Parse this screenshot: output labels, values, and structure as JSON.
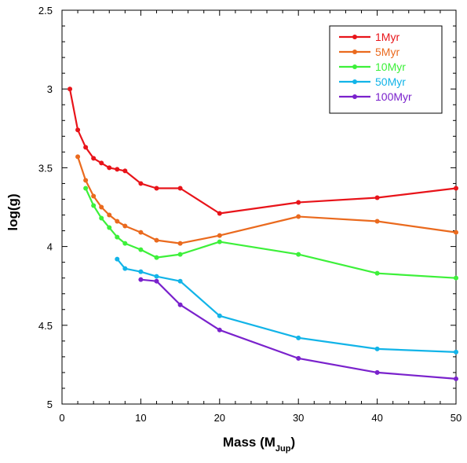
{
  "chart_data": {
    "type": "line",
    "title": "",
    "xlabel": "Mass (M",
    "xlabel_sub": "Jup",
    "xlabel_close": ")",
    "ylabel": "log(g)",
    "xlim": [
      0,
      50
    ],
    "ylim": [
      2.5,
      5
    ],
    "y_inverted": true,
    "x_ticks": [
      0,
      10,
      20,
      30,
      40,
      50
    ],
    "y_ticks": [
      2.5,
      3,
      3.5,
      4,
      4.5,
      5
    ],
    "x_tick_labels": [
      "0",
      "10",
      "20",
      "30",
      "40",
      "50"
    ],
    "y_tick_labels": [
      "2.5",
      "3",
      "3.5",
      "4",
      "4.5",
      "5"
    ],
    "grid": false,
    "legend_position": "top-right",
    "series": [
      {
        "name": "1Myr",
        "color": "#e8141a",
        "x": [
          1,
          2,
          3,
          4,
          5,
          6,
          7,
          8,
          10,
          12,
          15,
          20,
          30,
          40,
          50
        ],
        "y": [
          3.0,
          3.26,
          3.37,
          3.44,
          3.47,
          3.5,
          3.51,
          3.52,
          3.6,
          3.63,
          3.63,
          3.79,
          3.72,
          3.69,
          3.63
        ]
      },
      {
        "name": "5Myr",
        "color": "#ea6a1e",
        "x": [
          2,
          3,
          4,
          5,
          6,
          7,
          8,
          10,
          12,
          15,
          20,
          30,
          40,
          50
        ],
        "y": [
          3.43,
          3.58,
          3.68,
          3.75,
          3.8,
          3.84,
          3.87,
          3.91,
          3.96,
          3.98,
          3.93,
          3.81,
          3.84,
          3.91
        ]
      },
      {
        "name": "10Myr",
        "color": "#3df03a",
        "x": [
          3,
          4,
          5,
          6,
          7,
          8,
          10,
          12,
          15,
          20,
          30,
          40,
          50
        ],
        "y": [
          3.63,
          3.74,
          3.82,
          3.88,
          3.94,
          3.98,
          4.02,
          4.07,
          4.05,
          3.97,
          4.05,
          4.17,
          4.2
        ]
      },
      {
        "name": "50Myr",
        "color": "#12b4e8",
        "x": [
          7,
          8,
          10,
          12,
          15,
          20,
          30,
          40,
          50
        ],
        "y": [
          4.08,
          4.14,
          4.16,
          4.19,
          4.22,
          4.44,
          4.58,
          4.65,
          4.67
        ]
      },
      {
        "name": "100Myr",
        "color": "#7a22cc",
        "x": [
          10,
          12,
          15,
          20,
          30,
          40,
          50
        ],
        "y": [
          4.21,
          4.22,
          4.37,
          4.53,
          4.71,
          4.8,
          4.84
        ]
      }
    ]
  }
}
